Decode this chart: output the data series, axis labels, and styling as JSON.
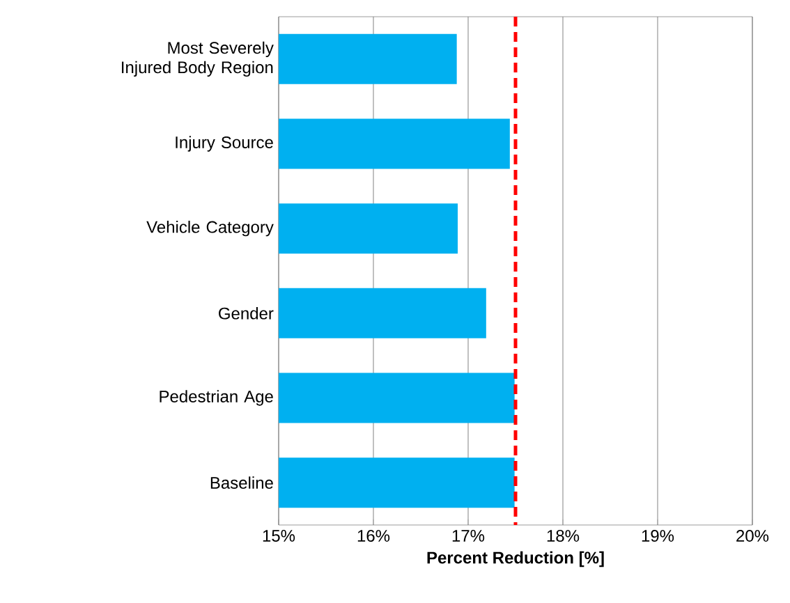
{
  "chart_data": {
    "type": "bar",
    "orientation": "horizontal",
    "xlabel": "Percent Reduction [%]",
    "categories": [
      "Most Severely Injured Body Region",
      "Injury Source",
      "Vehicle Category",
      "Gender",
      "Pedestrian Age",
      "Baseline"
    ],
    "values": [
      16.88,
      17.44,
      16.89,
      17.19,
      17.49,
      17.49
    ],
    "color": "#00b0f0",
    "xlim": [
      15,
      20
    ],
    "xticks": [
      {
        "value": 15,
        "label": "15%"
      },
      {
        "value": 16,
        "label": "16%"
      },
      {
        "value": 17,
        "label": "17%"
      },
      {
        "value": 18,
        "label": "18%"
      },
      {
        "value": 19,
        "label": "19%"
      },
      {
        "value": 20,
        "label": "20%"
      }
    ],
    "grid": "x",
    "ref_lines": [
      {
        "axis": "x",
        "value": 17.5,
        "color": "#ff0000",
        "line_style": "dashed"
      }
    ]
  }
}
